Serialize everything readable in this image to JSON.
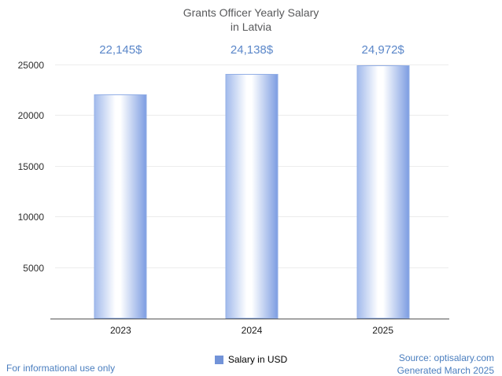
{
  "title": {
    "line1": "Grants Officer Yearly Salary",
    "line2": "in Latvia"
  },
  "chart_data": {
    "type": "bar",
    "title": "Grants Officer Yearly Salary in Latvia",
    "categories": [
      "2023",
      "2024",
      "2025"
    ],
    "series": [
      {
        "name": "Salary in USD",
        "values": [
          22145,
          24138,
          24972
        ]
      }
    ],
    "value_labels": [
      "22,145$",
      "24,138$",
      "24,972$"
    ],
    "xlabel": "",
    "ylabel": "",
    "ylim": [
      0,
      25000
    ],
    "yticks": [
      5000,
      10000,
      15000,
      20000,
      25000
    ],
    "grid": true,
    "legend_position": "bottom",
    "colors": {
      "bar_left": "#a3bbec",
      "bar_center": "#ffffff",
      "bar_right": "#7e9ee2",
      "bar_border": "#93afe6",
      "legend_swatch": "#7293d8",
      "value_label": "#5b87c9",
      "title_text": "#58595b",
      "footer_link": "#4a7ebf",
      "gridline": "#ececec",
      "axis_line": "#545454"
    }
  },
  "legend": {
    "label": "Salary in USD"
  },
  "footer": {
    "left": "For informational use only",
    "source": "Source: optisalary.com",
    "generated": "Generated March 2025"
  }
}
